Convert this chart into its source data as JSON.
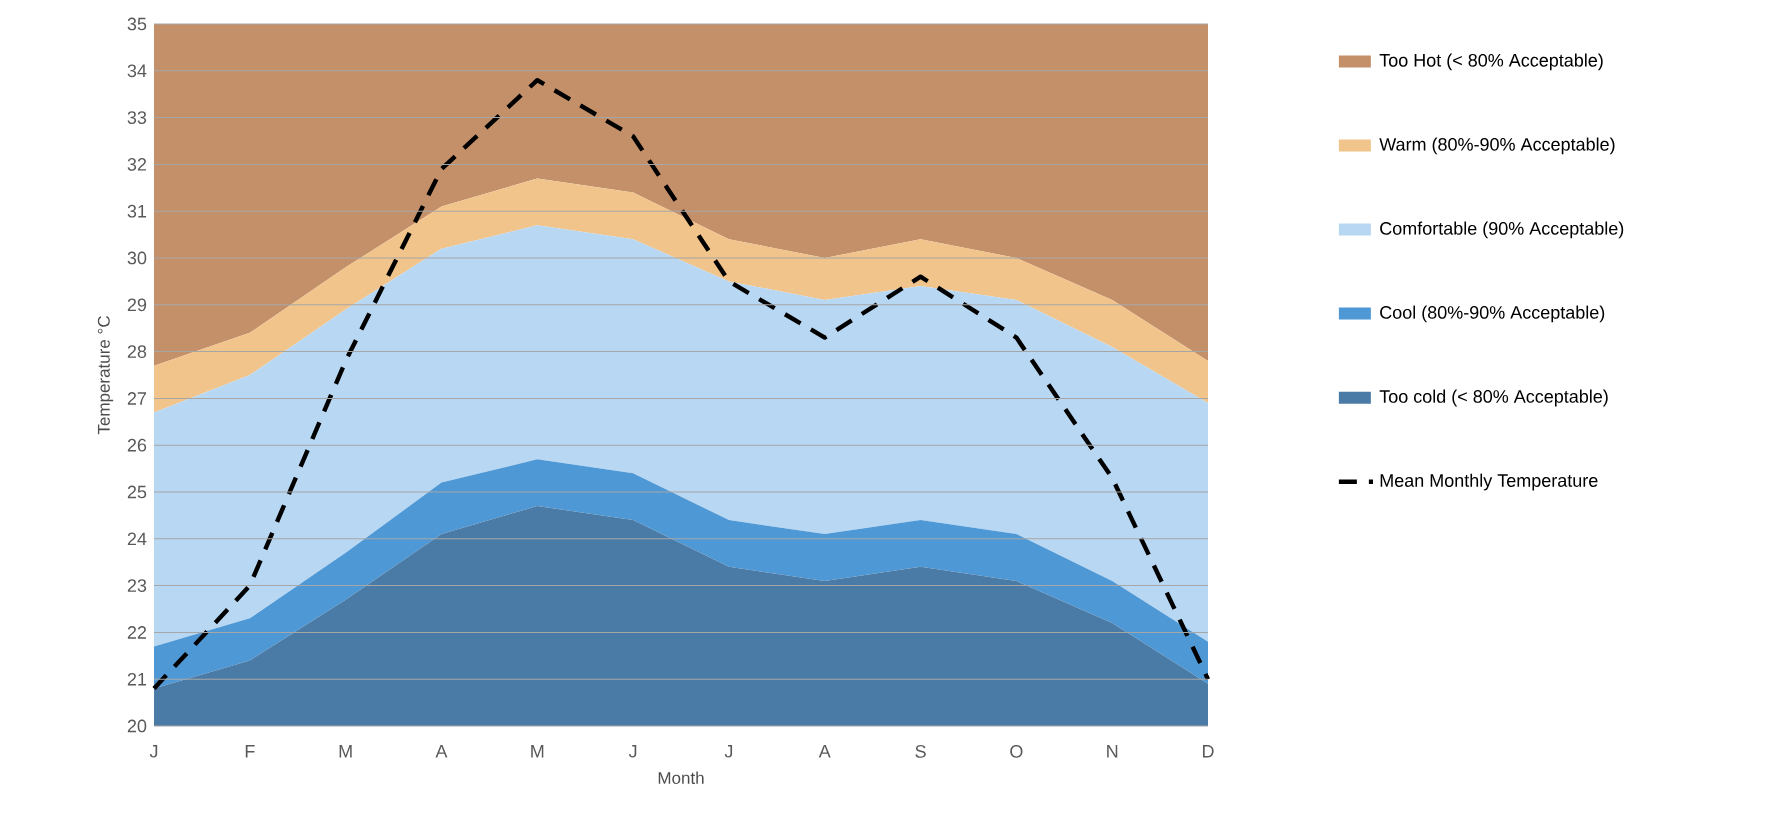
{
  "chart_data": {
    "type": "area",
    "xlabel": "Month",
    "ylabel": "Temperature °C",
    "categories": [
      "J",
      "F",
      "M",
      "A",
      "M",
      "J",
      "J",
      "A",
      "S",
      "O",
      "N",
      "D"
    ],
    "series": [
      {
        "name": "Too cold (< 80% Acceptable)",
        "color": "#4a7ba7",
        "values": [
          20.8,
          21.4,
          22.7,
          24.1,
          24.7,
          24.4,
          23.4,
          23.1,
          23.4,
          23.1,
          22.2,
          20.9
        ]
      },
      {
        "name": "Cool (80%-90% Acceptable)",
        "color": "#4f98d6",
        "values": [
          21.7,
          22.3,
          23.7,
          25.2,
          25.7,
          25.4,
          24.4,
          24.1,
          24.4,
          24.1,
          23.1,
          21.8
        ]
      },
      {
        "name": "Comfortable (90% Acceptable)",
        "color": "#b8d7f2",
        "values": [
          26.7,
          27.5,
          28.9,
          30.2,
          30.7,
          30.4,
          29.5,
          29.1,
          29.4,
          29.1,
          28.1,
          26.9
        ]
      },
      {
        "name": "Warm (80%-90% Acceptable)",
        "color": "#f0c48a",
        "values": [
          27.7,
          28.4,
          29.8,
          31.1,
          31.7,
          31.4,
          30.4,
          30.0,
          30.4,
          30.0,
          29.1,
          27.8
        ]
      },
      {
        "name": "Too Hot (< 80% Acceptable)",
        "color": "#c4906a",
        "values": [
          35,
          35,
          35,
          35,
          35,
          35,
          35,
          35,
          35,
          35,
          35,
          35
        ]
      },
      {
        "name": "Mean Monthly Temperature",
        "type": "line",
        "line_style": "dashed",
        "color": "#000000",
        "values": [
          20.8,
          23.0,
          27.8,
          31.9,
          33.8,
          32.6,
          29.5,
          28.3,
          29.6,
          28.3,
          25.3,
          21.0
        ]
      }
    ],
    "ylim": [
      20,
      35
    ],
    "yticks": [
      20,
      21,
      22,
      23,
      24,
      25,
      26,
      27,
      28,
      29,
      30,
      31,
      32,
      33,
      34,
      35
    ],
    "grid": "y",
    "legend": "right"
  }
}
